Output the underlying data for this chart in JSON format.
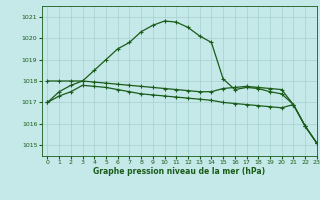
{
  "title": "Graphe pression niveau de la mer (hPa)",
  "background_color": "#c5e8e8",
  "grid_color": "#a8d0d0",
  "line_color": "#1a5c1a",
  "xlim": [
    -0.5,
    23
  ],
  "ylim": [
    1014.5,
    1021.5
  ],
  "yticks": [
    1015,
    1016,
    1017,
    1018,
    1019,
    1020,
    1021
  ],
  "xticks": [
    0,
    1,
    2,
    3,
    4,
    5,
    6,
    7,
    8,
    9,
    10,
    11,
    12,
    13,
    14,
    15,
    16,
    17,
    18,
    19,
    20,
    21,
    22,
    23
  ],
  "series_arch_x": [
    0,
    1,
    2,
    3,
    4,
    5,
    6,
    7,
    8,
    9,
    10,
    11,
    12,
    13,
    14,
    15,
    16,
    17,
    18,
    19,
    20,
    21,
    22,
    23
  ],
  "series_arch_y": [
    1017.0,
    1017.5,
    1017.8,
    1018.0,
    1018.5,
    1019.0,
    1019.5,
    1019.8,
    1020.3,
    1020.6,
    1020.8,
    1020.75,
    1020.5,
    1020.1,
    1019.8,
    1018.1,
    1017.6,
    1017.7,
    1017.65,
    1017.5,
    1017.4,
    1016.9,
    1015.9,
    1015.1
  ],
  "series_flat_x": [
    0,
    1,
    2,
    3,
    4,
    5,
    6,
    7,
    8,
    9,
    10,
    11,
    12,
    13,
    14,
    15,
    16,
    17,
    18,
    19,
    20,
    21,
    22,
    23
  ],
  "series_flat_y": [
    1018.0,
    1018.0,
    1018.0,
    1018.0,
    1017.95,
    1017.9,
    1017.85,
    1017.8,
    1017.75,
    1017.7,
    1017.65,
    1017.6,
    1017.55,
    1017.5,
    1017.5,
    1017.65,
    1017.7,
    1017.75,
    1017.7,
    1017.65,
    1017.6,
    1016.9,
    1015.9,
    1015.1
  ],
  "series_diag_x": [
    0,
    1,
    2,
    3,
    4,
    5,
    6,
    7,
    8,
    9,
    10,
    11,
    12,
    13,
    14,
    15,
    16,
    17,
    18,
    19,
    20,
    21,
    22,
    23
  ],
  "series_diag_y": [
    1017.0,
    1017.3,
    1017.5,
    1017.8,
    1017.75,
    1017.7,
    1017.6,
    1017.5,
    1017.4,
    1017.35,
    1017.3,
    1017.25,
    1017.2,
    1017.15,
    1017.1,
    1017.0,
    1016.95,
    1016.9,
    1016.85,
    1016.8,
    1016.75,
    1016.9,
    1015.9,
    1015.1
  ]
}
